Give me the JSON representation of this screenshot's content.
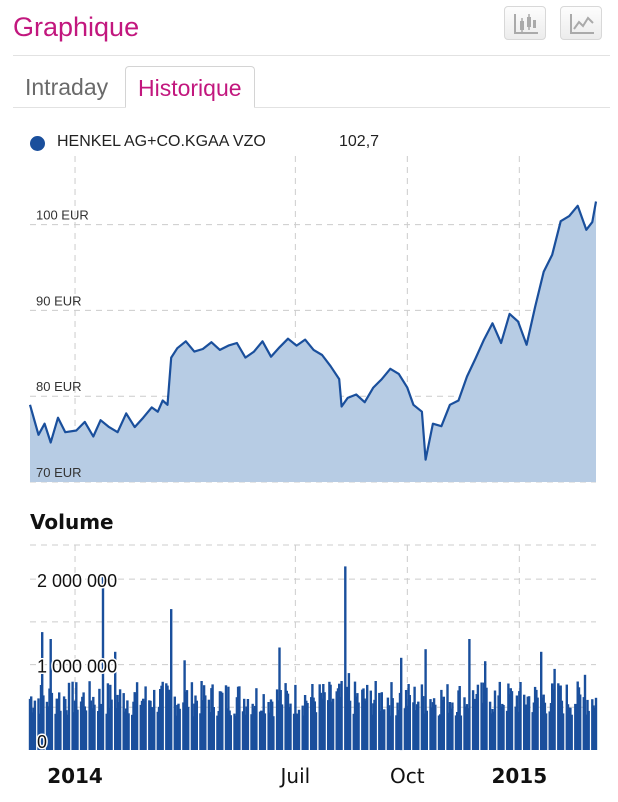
{
  "header": {
    "title": "Graphique",
    "icons": [
      "candlestick-chart-icon",
      "line-chart-icon"
    ]
  },
  "tabs": [
    {
      "label": "Intraday",
      "active": false
    },
    {
      "label": "Historique",
      "active": true
    }
  ],
  "colors": {
    "accent": "#c2177e",
    "series": "#1a4f9c",
    "area": "#b7cce4",
    "grid": "#cccccc"
  },
  "chart_data": [
    {
      "type": "area",
      "series": [
        {
          "name": "HENKEL AG+CO.KGAA VZO",
          "last": "102,7"
        }
      ],
      "y_unit": "EUR",
      "ylim": [
        70,
        108
      ],
      "ytick_labels": [
        "70 EUR",
        "80 EUR",
        "90 EUR",
        "100 EUR"
      ],
      "yticks": [
        70,
        80,
        90,
        100
      ],
      "xlim": [
        "2013-11-25",
        "2015-03-05"
      ],
      "xtick_labels": [
        "2014",
        "Juil",
        "Oct",
        "2015"
      ],
      "xticks": [
        "2014-01-01",
        "2014-07-01",
        "2014-10-01",
        "2015-01-01"
      ],
      "grid": true,
      "points": [
        [
          "2013-11-25",
          79.0
        ],
        [
          "2013-12-02",
          75.5
        ],
        [
          "2013-12-07",
          76.8
        ],
        [
          "2013-12-12",
          74.6
        ],
        [
          "2013-12-18",
          77.5
        ],
        [
          "2013-12-24",
          75.8
        ],
        [
          "2014-01-02",
          76.0
        ],
        [
          "2014-01-09",
          77.0
        ],
        [
          "2014-01-16",
          75.3
        ],
        [
          "2014-01-22",
          77.2
        ],
        [
          "2014-01-29",
          76.4
        ],
        [
          "2014-02-05",
          75.8
        ],
        [
          "2014-02-12",
          78.0
        ],
        [
          "2014-02-19",
          76.4
        ],
        [
          "2014-02-26",
          77.5
        ],
        [
          "2014-03-05",
          78.7
        ],
        [
          "2014-03-10",
          78.2
        ],
        [
          "2014-03-14",
          79.5
        ],
        [
          "2014-03-18",
          79.0
        ],
        [
          "2014-03-21",
          84.5
        ],
        [
          "2014-03-26",
          85.6
        ],
        [
          "2014-04-02",
          86.4
        ],
        [
          "2014-04-09",
          85.2
        ],
        [
          "2014-04-16",
          85.5
        ],
        [
          "2014-04-23",
          86.3
        ],
        [
          "2014-04-30",
          85.4
        ],
        [
          "2014-05-07",
          85.9
        ],
        [
          "2014-05-14",
          86.2
        ],
        [
          "2014-05-21",
          84.5
        ],
        [
          "2014-05-28",
          85.2
        ],
        [
          "2014-06-04",
          86.4
        ],
        [
          "2014-06-11",
          84.6
        ],
        [
          "2014-06-18",
          85.7
        ],
        [
          "2014-06-25",
          86.7
        ],
        [
          "2014-07-02",
          85.9
        ],
        [
          "2014-07-09",
          86.6
        ],
        [
          "2014-07-16",
          85.4
        ],
        [
          "2014-07-23",
          84.8
        ],
        [
          "2014-07-30",
          83.5
        ],
        [
          "2014-08-06",
          82.0
        ],
        [
          "2014-08-08",
          78.8
        ],
        [
          "2014-08-13",
          79.8
        ],
        [
          "2014-08-20",
          80.2
        ],
        [
          "2014-08-27",
          79.3
        ],
        [
          "2014-09-03",
          81.0
        ],
        [
          "2014-09-10",
          82.0
        ],
        [
          "2014-09-17",
          83.2
        ],
        [
          "2014-09-24",
          82.6
        ],
        [
          "2014-10-01",
          81.0
        ],
        [
          "2014-10-06",
          79.0
        ],
        [
          "2014-10-13",
          78.2
        ],
        [
          "2014-10-16",
          72.6
        ],
        [
          "2014-10-22",
          76.8
        ],
        [
          "2014-10-29",
          76.5
        ],
        [
          "2014-11-05",
          79.0
        ],
        [
          "2014-11-12",
          79.5
        ],
        [
          "2014-11-19",
          82.3
        ],
        [
          "2014-11-26",
          84.4
        ],
        [
          "2014-12-03",
          86.6
        ],
        [
          "2014-12-10",
          88.5
        ],
        [
          "2014-12-17",
          86.2
        ],
        [
          "2014-12-24",
          89.6
        ],
        [
          "2014-12-31",
          88.7
        ],
        [
          "2015-01-07",
          86.0
        ],
        [
          "2015-01-14",
          90.4
        ],
        [
          "2015-01-21",
          94.5
        ],
        [
          "2015-01-28",
          96.5
        ],
        [
          "2015-02-04",
          100.4
        ],
        [
          "2015-02-11",
          101.0
        ],
        [
          "2015-02-18",
          102.2
        ],
        [
          "2015-02-25",
          99.4
        ],
        [
          "2015-03-02",
          100.3
        ],
        [
          "2015-03-05",
          102.7
        ]
      ]
    },
    {
      "type": "bar",
      "title": "Volume",
      "ylim": [
        0,
        2400000
      ],
      "ytick_labels": [
        "0",
        "1 000 000",
        "2 000 000"
      ],
      "yticks": [
        0,
        1000000,
        2000000
      ],
      "xlim": [
        "2013-11-25",
        "2015-03-05"
      ],
      "xtick_labels": [
        "2014",
        "Juil",
        "Oct",
        "2015"
      ],
      "xticks": [
        "2014-01-01",
        "2014-07-01",
        "2014-10-01",
        "2015-01-01"
      ],
      "grid": true,
      "base_level": 560000,
      "spikes": [
        [
          "2013-12-05",
          1380000
        ],
        [
          "2013-12-12",
          1300000
        ],
        [
          "2014-01-24",
          2050000
        ],
        [
          "2014-02-03",
          1150000
        ],
        [
          "2014-03-21",
          1650000
        ],
        [
          "2014-04-01",
          1050000
        ],
        [
          "2014-06-18",
          1200000
        ],
        [
          "2014-08-11",
          2150000
        ],
        [
          "2014-08-14",
          900000
        ],
        [
          "2014-09-26",
          1080000
        ],
        [
          "2014-10-16",
          1180000
        ],
        [
          "2014-11-21",
          1300000
        ],
        [
          "2014-12-04",
          1040000
        ],
        [
          "2015-01-19",
          1150000
        ],
        [
          "2015-01-30",
          950000
        ],
        [
          "2015-02-24",
          880000
        ]
      ]
    }
  ]
}
